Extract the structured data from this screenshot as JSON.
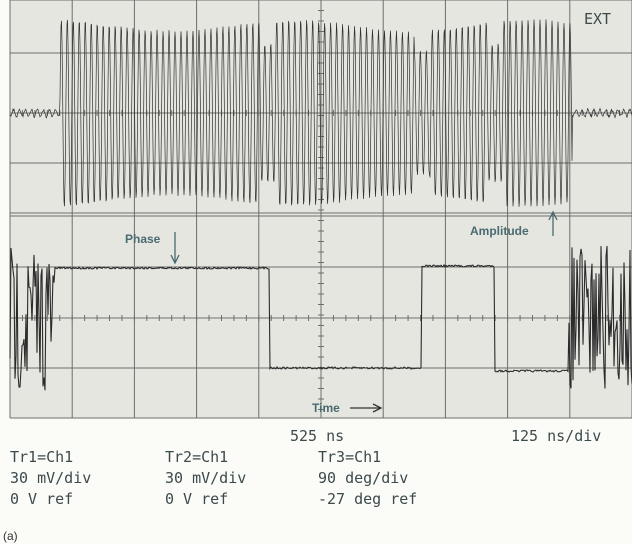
{
  "screen": {
    "top_label": "EXT",
    "annotations": {
      "phase": "Phase",
      "amplitude": "Amplitude",
      "time": "Time"
    },
    "time_center": "525 ns",
    "time_scale": "125 ns/div",
    "traces": [
      {
        "source": "Tr1=Ch1",
        "scale": "30 mV/div",
        "ref": "0 V ref"
      },
      {
        "source": "Tr2=Ch1",
        "scale": "30 mV/div",
        "ref": "0 V ref"
      },
      {
        "source": "Tr3=Ch1",
        "scale": "90 deg/div",
        "ref": "-27 deg ref"
      }
    ],
    "caption": "(a)"
  }
}
